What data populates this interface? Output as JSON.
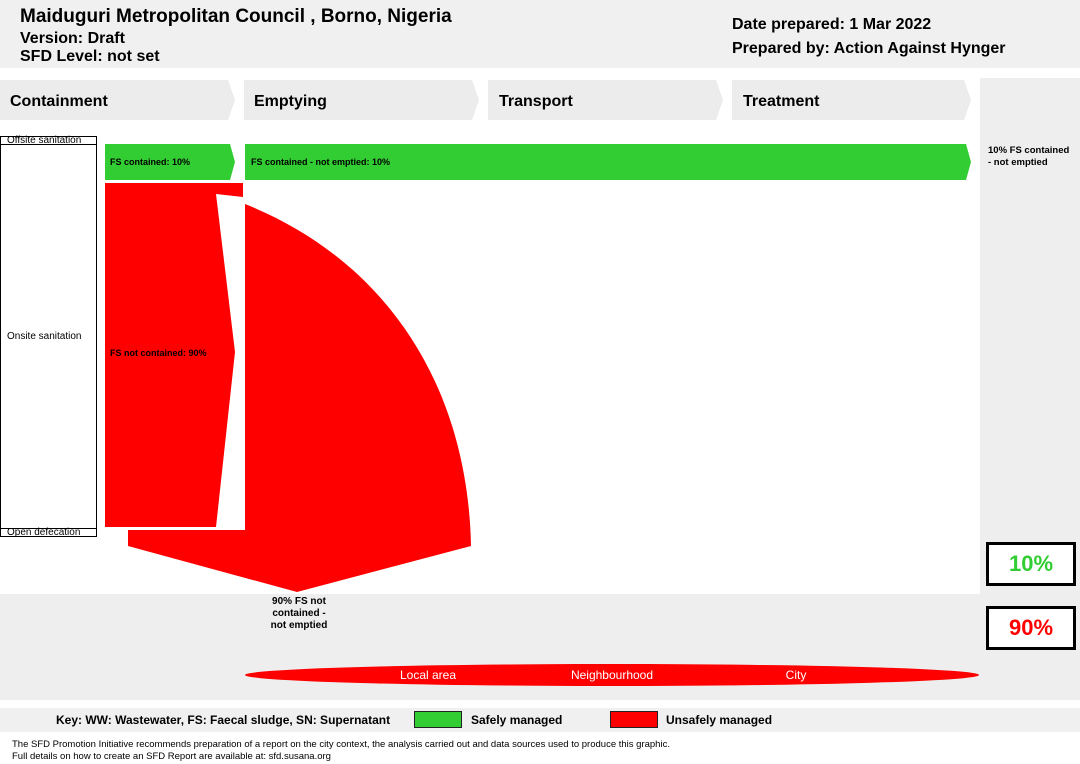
{
  "header": {
    "title": "Maiduguri Metropolitan Council , Borno, Nigeria",
    "version": "Version: Draft",
    "sfd_level": "SFD Level: not set",
    "date_prepared": "Date prepared: 1 Mar 2022",
    "prepared_by": "Prepared by: Action Against Hynger"
  },
  "stages": [
    "Containment",
    "Emptying",
    "Transport",
    "Treatment"
  ],
  "side_labels": {
    "offsite": "Offsite sanitation",
    "onsite": "Onsite sanitation",
    "open_defecation": "Open defecation"
  },
  "flows": {
    "fs_contained": "FS contained: 10%",
    "fs_contained_not_emptied": "FS contained - not emptied: 10%",
    "fs_not_contained": "FS not contained: 90%",
    "right_note": "10% FS contained - not emptied",
    "bottom_note": "90% FS not contained - not emptied"
  },
  "chart_data": {
    "type": "sankey",
    "stages": [
      "Containment",
      "Emptying",
      "Transport",
      "Treatment"
    ],
    "flows": [
      {
        "label": "FS contained",
        "value": 10,
        "unit": "%",
        "managed": "safe"
      },
      {
        "label": "FS contained - not emptied",
        "value": 10,
        "unit": "%",
        "managed": "safe"
      },
      {
        "label": "FS not contained",
        "value": 90,
        "unit": "%",
        "managed": "unsafe"
      }
    ],
    "safely_managed_pct": 10,
    "unsafely_managed_pct": 90
  },
  "totals": {
    "safe_pct": "10%",
    "unsafe_pct": "90%",
    "safe_color": "#32cd32",
    "unsafe_color": "#ff0000"
  },
  "areas": [
    "Local area",
    "Neighbourhood",
    "City"
  ],
  "key": {
    "legend": "Key: WW: Wastewater, FS: Faecal sludge, SN: Supernatant",
    "safe_label": "Safely managed",
    "unsafe_label": "Unsafely managed"
  },
  "footer": {
    "line1": "The SFD Promotion Initiative recommends preparation of a report on the city context, the analysis carried out and data sources used to produce this graphic.",
    "line2": "Full details on how to create an SFD Report are available at: sfd.susana.org"
  }
}
